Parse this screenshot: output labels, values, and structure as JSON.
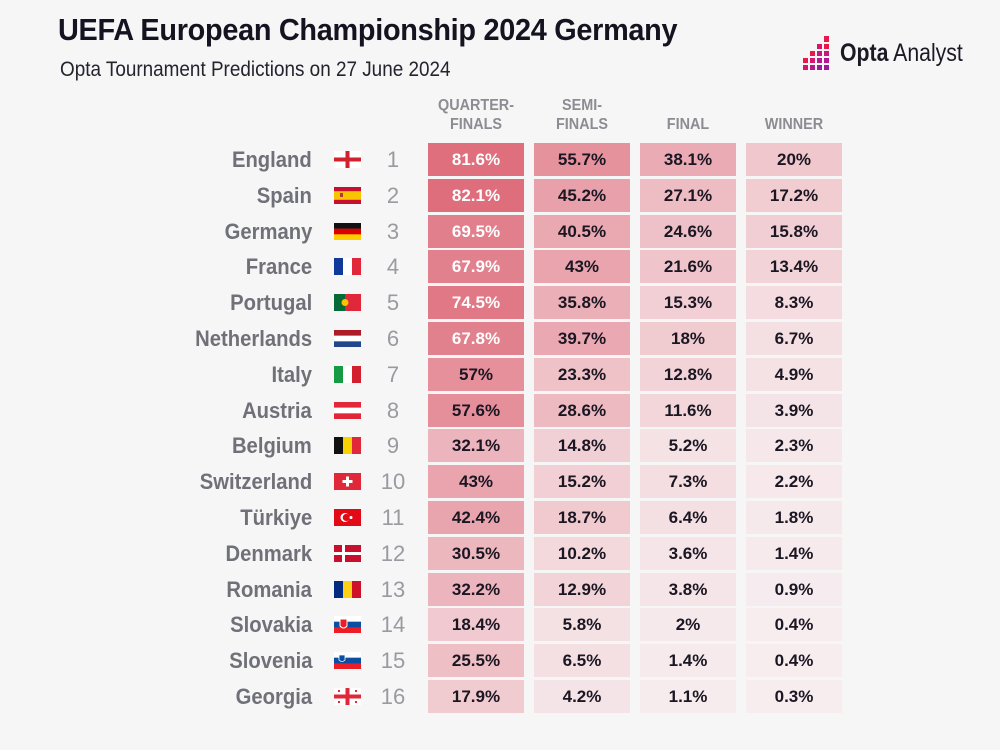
{
  "title": "UEFA European Championship 2024 Germany",
  "subtitle": "Opta Tournament Predictions on 27 June 2024",
  "logo": {
    "bold": "Opta",
    "light": "Analyst",
    "accent_colors": [
      "#e8194a",
      "#b5178f"
    ]
  },
  "colors": {
    "cell_high": "#de6a79",
    "cell_low": "#f7eef0",
    "text_dark": "#1a1622",
    "text_light": "#ffffff"
  },
  "chart_data": {
    "type": "table",
    "columns": [
      "QUARTER-FINALS",
      "SEMI-FINALS",
      "FINAL",
      "WINNER"
    ],
    "column_labels": [
      [
        "QUARTER-",
        "FINALS"
      ],
      [
        "SEMI-",
        "FINALS"
      ],
      [
        "",
        "FINAL"
      ],
      [
        "",
        "WINNER"
      ]
    ],
    "rows": [
      {
        "team": "England",
        "flag": "england-flag-icon",
        "rank": "1",
        "values": [
          "81.6%",
          "55.7%",
          "38.1%",
          "20%"
        ]
      },
      {
        "team": "Spain",
        "flag": "spain-flag-icon",
        "rank": "2",
        "values": [
          "82.1%",
          "45.2%",
          "27.1%",
          "17.2%"
        ]
      },
      {
        "team": "Germany",
        "flag": "germany-flag-icon",
        "rank": "3",
        "values": [
          "69.5%",
          "40.5%",
          "24.6%",
          "15.8%"
        ]
      },
      {
        "team": "France",
        "flag": "france-flag-icon",
        "rank": "4",
        "values": [
          "67.9%",
          "43%",
          "21.6%",
          "13.4%"
        ]
      },
      {
        "team": "Portugal",
        "flag": "portugal-flag-icon",
        "rank": "5",
        "values": [
          "74.5%",
          "35.8%",
          "15.3%",
          "8.3%"
        ]
      },
      {
        "team": "Netherlands",
        "flag": "netherlands-flag-icon",
        "rank": "6",
        "values": [
          "67.8%",
          "39.7%",
          "18%",
          "6.7%"
        ]
      },
      {
        "team": "Italy",
        "flag": "italy-flag-icon",
        "rank": "7",
        "values": [
          "57%",
          "23.3%",
          "12.8%",
          "4.9%"
        ]
      },
      {
        "team": "Austria",
        "flag": "austria-flag-icon",
        "rank": "8",
        "values": [
          "57.6%",
          "28.6%",
          "11.6%",
          "3.9%"
        ]
      },
      {
        "team": "Belgium",
        "flag": "belgium-flag-icon",
        "rank": "9",
        "values": [
          "32.1%",
          "14.8%",
          "5.2%",
          "2.3%"
        ]
      },
      {
        "team": "Switzerland",
        "flag": "switzerland-flag-icon",
        "rank": "10",
        "values": [
          "43%",
          "15.2%",
          "7.3%",
          "2.2%"
        ]
      },
      {
        "team": "Türkiye",
        "flag": "turkiye-flag-icon",
        "rank": "11",
        "values": [
          "42.4%",
          "18.7%",
          "6.4%",
          "1.8%"
        ]
      },
      {
        "team": "Denmark",
        "flag": "denmark-flag-icon",
        "rank": "12",
        "values": [
          "30.5%",
          "10.2%",
          "3.6%",
          "1.4%"
        ]
      },
      {
        "team": "Romania",
        "flag": "romania-flag-icon",
        "rank": "13",
        "values": [
          "32.2%",
          "12.9%",
          "3.8%",
          "0.9%"
        ]
      },
      {
        "team": "Slovakia",
        "flag": "slovakia-flag-icon",
        "rank": "14",
        "values": [
          "18.4%",
          "5.8%",
          "2%",
          "0.4%"
        ]
      },
      {
        "team": "Slovenia",
        "flag": "slovenia-flag-icon",
        "rank": "15",
        "values": [
          "25.5%",
          "6.5%",
          "1.4%",
          "0.4%"
        ]
      },
      {
        "team": "Georgia",
        "flag": "georgia-flag-icon",
        "rank": "16",
        "values": [
          "17.9%",
          "4.2%",
          "1.1%",
          "0.3%"
        ]
      }
    ]
  }
}
